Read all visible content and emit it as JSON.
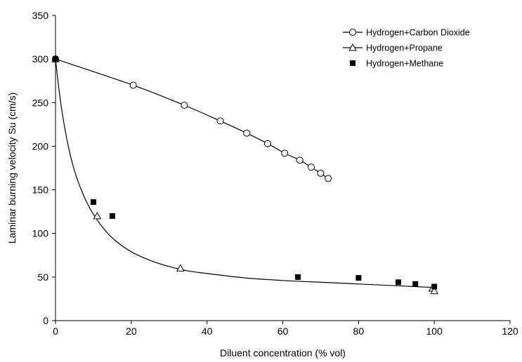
{
  "chart_data": {
    "type": "scatter",
    "xlabel": "Diluent concentration (% vol)",
    "ylabel": "Laminar burning velocity Su (cm/s)",
    "xlim": [
      0,
      120
    ],
    "ylim": [
      0,
      350
    ],
    "xticks": [
      0,
      20,
      40,
      60,
      80,
      100,
      120
    ],
    "yticks": [
      0,
      50,
      100,
      150,
      200,
      250,
      300,
      350
    ],
    "grid": false,
    "legend_position": "top-right",
    "series": [
      {
        "name": "Hydrogen+Carbon Dioxide",
        "marker": "open-circle",
        "x": [
          0,
          20.5,
          34,
          43.5,
          50.5,
          56,
          60.5,
          64.5,
          67.5,
          70,
          72
        ],
        "y": [
          300,
          270,
          247,
          229,
          215,
          203,
          192,
          184,
          176,
          169,
          163
        ],
        "fit": {
          "x": [
            0,
            20.5,
            34,
            43.5,
            50.5,
            56,
            60.5,
            64.5,
            67.5,
            70,
            72
          ],
          "y": [
            300,
            270,
            247,
            229,
            215,
            203,
            192,
            184,
            176,
            169,
            163
          ]
        }
      },
      {
        "name": "Hydrogen+Propane",
        "marker": "open-triangle",
        "x": [
          0,
          11,
          33,
          99.5,
          100
        ],
        "y": [
          300,
          120,
          60,
          37,
          34
        ],
        "fit": {
          "x": [
            0,
            1,
            2,
            3,
            4,
            5,
            6,
            8,
            10,
            13,
            16,
            20,
            25,
            30,
            35,
            40,
            50,
            60,
            70,
            80,
            90,
            100
          ],
          "y": [
            300,
            262,
            232,
            208,
            188,
            172,
            159,
            138,
            122,
            104,
            91,
            79,
            69,
            62,
            57,
            54,
            49,
            46,
            44,
            42,
            40,
            38
          ]
        }
      },
      {
        "name": "Hydrogen+Methane",
        "marker": "filled-square",
        "x": [
          0,
          10,
          15,
          64,
          80,
          90.5,
          95,
          100
        ],
        "y": [
          300,
          136,
          120,
          50,
          49,
          44,
          42,
          39
        ]
      }
    ]
  }
}
